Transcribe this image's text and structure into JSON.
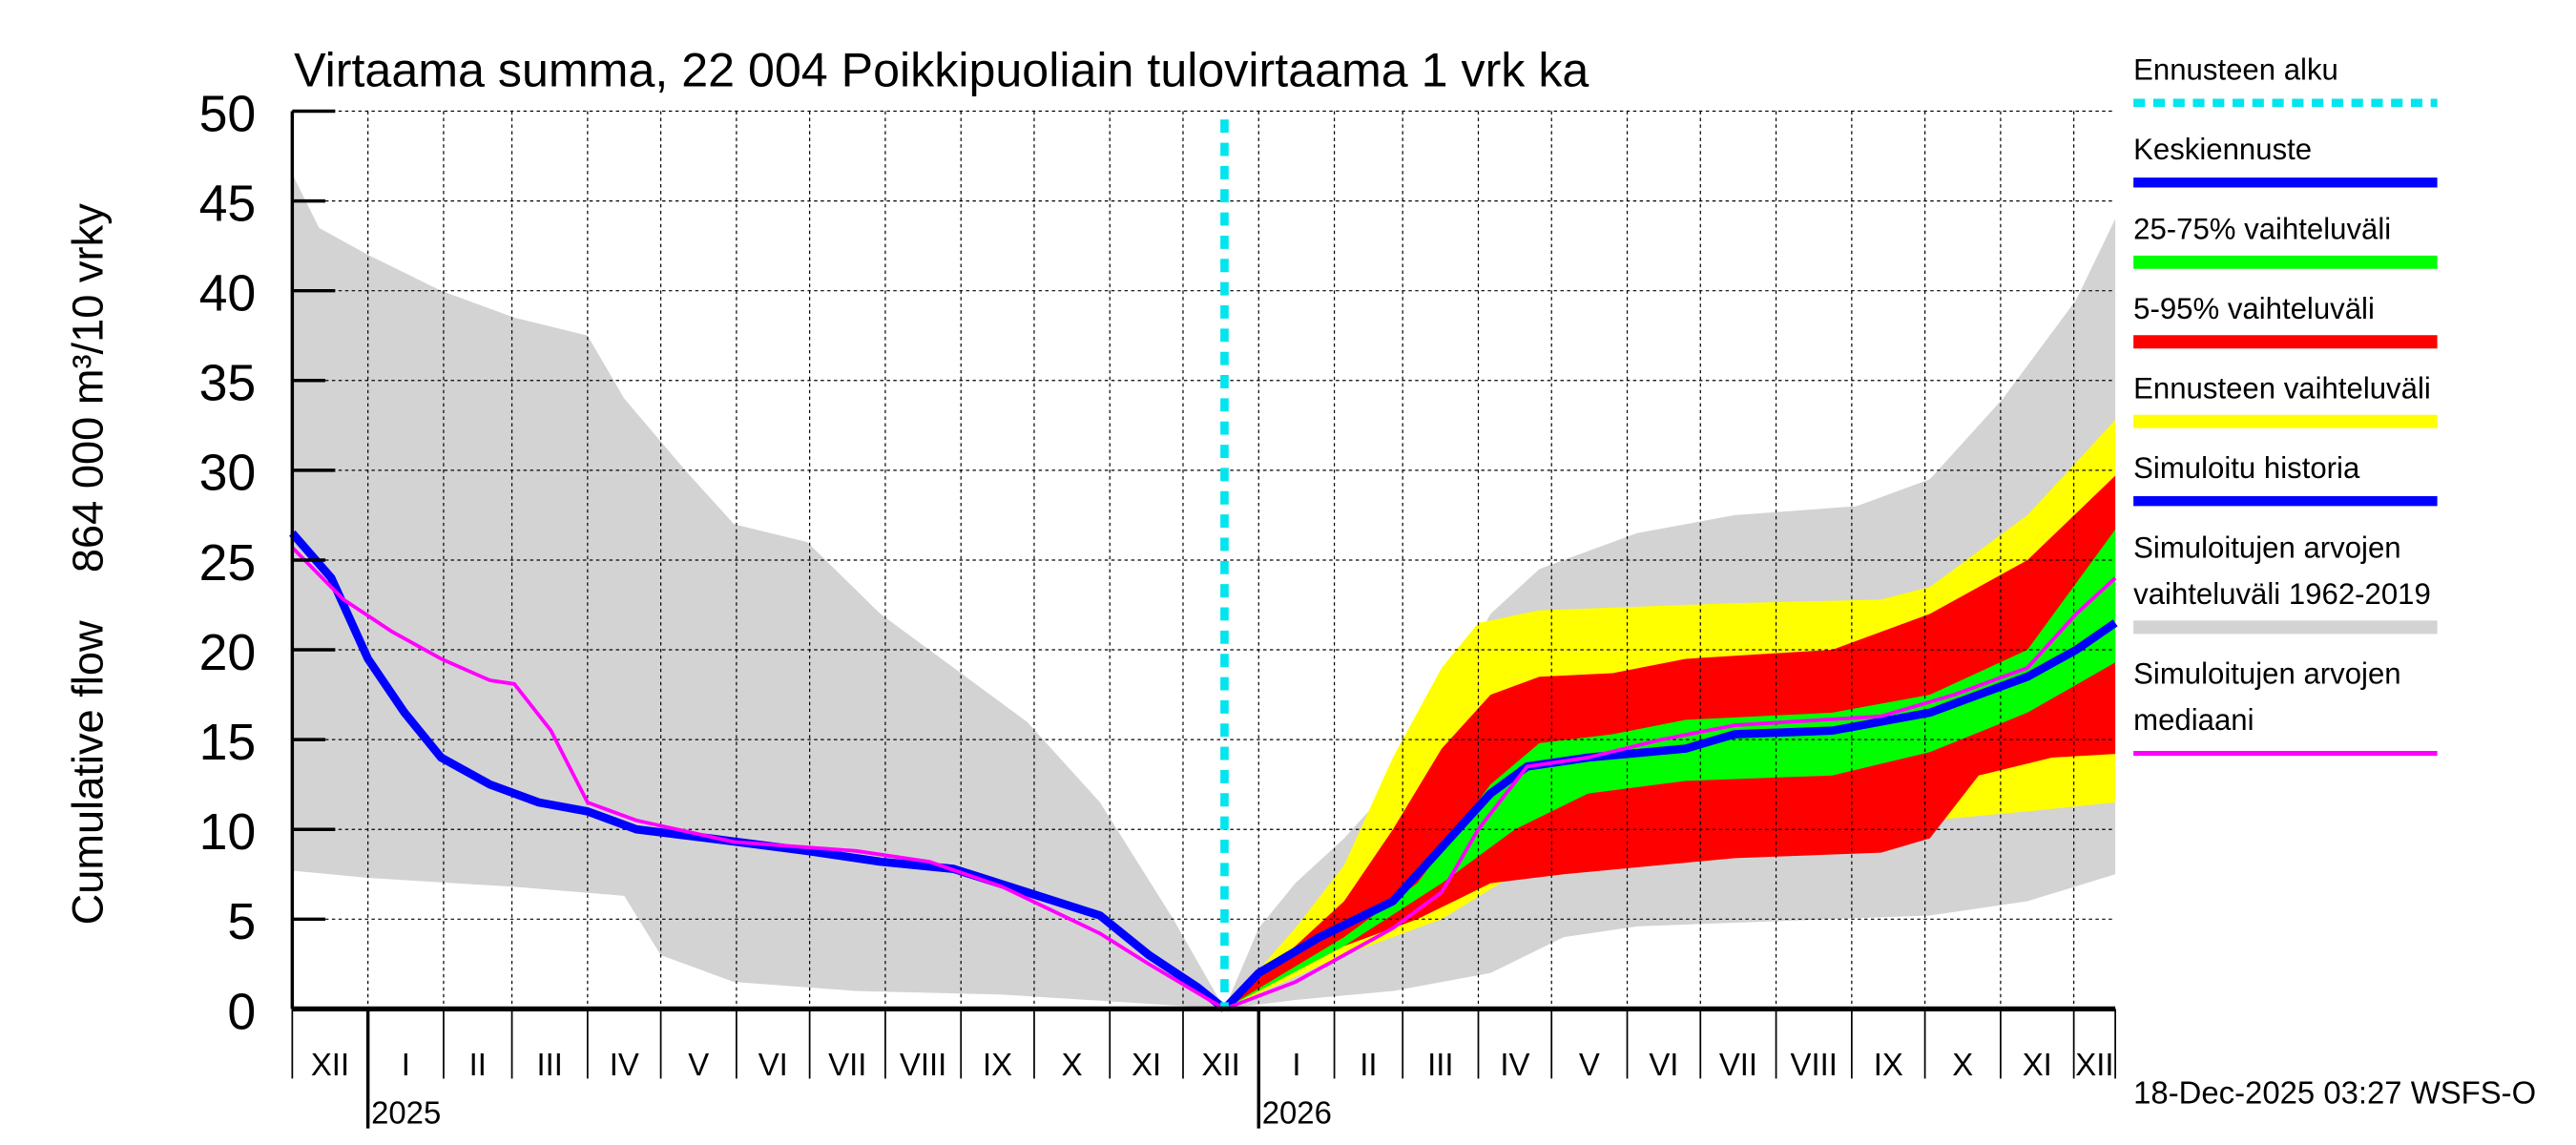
{
  "chart_data": {
    "type": "area",
    "title": "Virtaama summa, 22 004 Poikkipuoliain tulovirtaama 1 vrk ka",
    "ylabel": "Cumulative flow    864 000 m³/10 vrky",
    "ylim": [
      0,
      50
    ],
    "yticks": [
      0,
      5,
      10,
      15,
      20,
      25,
      30,
      35,
      40,
      45,
      50
    ],
    "x_unit": "days since 2025-01-01",
    "xlim": [
      -31,
      716
    ],
    "forecast_start_day": 351,
    "month_boundaries": [
      -31,
      0,
      31,
      59,
      90,
      120,
      151,
      181,
      212,
      243,
      273,
      304,
      334,
      365,
      396,
      424,
      455,
      485,
      516,
      546,
      577,
      608,
      638,
      669,
      699,
      716
    ],
    "month_labels": [
      "XII",
      "I",
      "II",
      "III",
      "IV",
      "V",
      "VI",
      "VII",
      "VIII",
      "IX",
      "X",
      "XI",
      "XII",
      "I",
      "II",
      "III",
      "IV",
      "V",
      "VI",
      "VII",
      "VIII",
      "IX",
      "X",
      "XI",
      "XII"
    ],
    "year_labels": [
      {
        "day": 0,
        "label": "2025"
      },
      {
        "day": 365,
        "label": "2026"
      }
    ],
    "bands": [
      {
        "name": "Simuloitujen arvojen vaihteluväli 1962-2019",
        "color": "#d3d3d3",
        "upper": [
          [
            -31,
            46.5
          ],
          [
            -20,
            43.5
          ],
          [
            0,
            42
          ],
          [
            30,
            40
          ],
          [
            60,
            38.5
          ],
          [
            90,
            37.5
          ],
          [
            105,
            34
          ],
          [
            130,
            30
          ],
          [
            150,
            27
          ],
          [
            180,
            26
          ],
          [
            210,
            22
          ],
          [
            240,
            19
          ],
          [
            270,
            16
          ],
          [
            300,
            11.5
          ],
          [
            330,
            5
          ],
          [
            351,
            0
          ],
          [
            365,
            4.5
          ],
          [
            380,
            7
          ],
          [
            400,
            9.5
          ],
          [
            420,
            12.5
          ],
          [
            440,
            17
          ],
          [
            460,
            22
          ],
          [
            480,
            24.5
          ],
          [
            520,
            26.5
          ],
          [
            560,
            27.5
          ],
          [
            610,
            28
          ],
          [
            640,
            29.5
          ],
          [
            670,
            34
          ],
          [
            700,
            39.5
          ],
          [
            716,
            44
          ]
        ],
        "lower": [
          [
            -31,
            7.7
          ],
          [
            0,
            7.3
          ],
          [
            60,
            6.8
          ],
          [
            105,
            6.3
          ],
          [
            120,
            3
          ],
          [
            150,
            1.5
          ],
          [
            200,
            1
          ],
          [
            260,
            0.8
          ],
          [
            330,
            0.2
          ],
          [
            351,
            0
          ],
          [
            380,
            0.5
          ],
          [
            420,
            1
          ],
          [
            460,
            2
          ],
          [
            490,
            4
          ],
          [
            520,
            4.6
          ],
          [
            600,
            5
          ],
          [
            640,
            5.2
          ],
          [
            680,
            6
          ],
          [
            716,
            7.5
          ]
        ]
      },
      {
        "name": "Ennusteen vaihteluväli",
        "color": "#ffff00",
        "upper": [
          [
            351,
            0
          ],
          [
            380,
            4.5
          ],
          [
            400,
            8
          ],
          [
            420,
            14
          ],
          [
            440,
            19
          ],
          [
            455,
            21.5
          ],
          [
            480,
            22.2
          ],
          [
            560,
            22.6
          ],
          [
            620,
            22.8
          ],
          [
            640,
            23.5
          ],
          [
            680,
            27.5
          ],
          [
            716,
            32.8
          ]
        ],
        "lower": [
          [
            351,
            0
          ],
          [
            400,
            3
          ],
          [
            440,
            5
          ],
          [
            470,
            7.5
          ],
          [
            490,
            8.5
          ],
          [
            560,
            9
          ],
          [
            620,
            9.3
          ],
          [
            640,
            10.5
          ],
          [
            680,
            11
          ],
          [
            716,
            11.5
          ]
        ]
      },
      {
        "name": "5-95% vaihteluväli",
        "color": "#ff0000",
        "upper": [
          [
            351,
            0
          ],
          [
            380,
            3.5
          ],
          [
            400,
            6
          ],
          [
            420,
            10
          ],
          [
            440,
            14.5
          ],
          [
            460,
            17.5
          ],
          [
            480,
            18.5
          ],
          [
            510,
            18.7
          ],
          [
            540,
            19.5
          ],
          [
            600,
            20
          ],
          [
            640,
            22
          ],
          [
            680,
            25
          ],
          [
            716,
            29.7
          ]
        ],
        "lower": [
          [
            351,
            0
          ],
          [
            390,
            3
          ],
          [
            430,
            5
          ],
          [
            460,
            7
          ],
          [
            490,
            7.5
          ],
          [
            560,
            8.4
          ],
          [
            620,
            8.7
          ],
          [
            640,
            9.5
          ],
          [
            660,
            13
          ],
          [
            690,
            14
          ],
          [
            716,
            14.2
          ]
        ]
      },
      {
        "name": "25-75% vaihteluväli",
        "color": "#00ff00",
        "upper": [
          [
            351,
            0
          ],
          [
            400,
            4
          ],
          [
            430,
            7
          ],
          [
            460,
            12.5
          ],
          [
            480,
            14.8
          ],
          [
            510,
            15.3
          ],
          [
            540,
            16.1
          ],
          [
            600,
            16.5
          ],
          [
            640,
            17.5
          ],
          [
            680,
            20
          ],
          [
            716,
            26.7
          ]
        ],
        "lower": [
          [
            351,
            0
          ],
          [
            400,
            3.5
          ],
          [
            440,
            7
          ],
          [
            470,
            10
          ],
          [
            500,
            12
          ],
          [
            540,
            12.7
          ],
          [
            600,
            13
          ],
          [
            640,
            14.3
          ],
          [
            680,
            16.5
          ],
          [
            716,
            19.3
          ]
        ]
      }
    ],
    "series": [
      {
        "name": "Simuloitu historia",
        "color": "#0000ff",
        "width": 5,
        "points": [
          [
            -31,
            26.5
          ],
          [
            -15,
            24
          ],
          [
            0,
            19.5
          ],
          [
            15,
            16.5
          ],
          [
            30,
            14
          ],
          [
            50,
            12.5
          ],
          [
            70,
            11.5
          ],
          [
            90,
            11
          ],
          [
            110,
            10
          ],
          [
            140,
            9.5
          ],
          [
            180,
            8.8
          ],
          [
            210,
            8.2
          ],
          [
            240,
            7.8
          ],
          [
            270,
            6.5
          ],
          [
            300,
            5.2
          ],
          [
            320,
            3
          ],
          [
            340,
            1.2
          ],
          [
            351,
            0
          ]
        ]
      },
      {
        "name": "Keskiennuste",
        "color": "#0000ff",
        "width": 5,
        "points": [
          [
            351,
            0
          ],
          [
            365,
            2
          ],
          [
            390,
            4
          ],
          [
            420,
            6
          ],
          [
            440,
            9
          ],
          [
            460,
            12
          ],
          [
            475,
            13.5
          ],
          [
            500,
            14
          ],
          [
            540,
            14.5
          ],
          [
            560,
            15.3
          ],
          [
            600,
            15.5
          ],
          [
            640,
            16.5
          ],
          [
            660,
            17.5
          ],
          [
            680,
            18.5
          ],
          [
            700,
            20
          ],
          [
            716,
            21.5
          ]
        ]
      },
      {
        "name": "Simuloitujen arvojen mediaani",
        "color": "#ff00ff",
        "width": 2.2,
        "points": [
          [
            -31,
            25.7
          ],
          [
            -10,
            22.8
          ],
          [
            10,
            21
          ],
          [
            30,
            19.5
          ],
          [
            50,
            18.3
          ],
          [
            60,
            18.1
          ],
          [
            75,
            15.5
          ],
          [
            90,
            11.5
          ],
          [
            110,
            10.5
          ],
          [
            150,
            9.3
          ],
          [
            200,
            8.8
          ],
          [
            230,
            8.2
          ],
          [
            260,
            6.8
          ],
          [
            280,
            5.5
          ],
          [
            300,
            4.2
          ],
          [
            320,
            2.5
          ],
          [
            351,
            0
          ],
          [
            380,
            1.5
          ],
          [
            400,
            3
          ],
          [
            420,
            4.5
          ],
          [
            440,
            6.5
          ],
          [
            455,
            10
          ],
          [
            475,
            13.5
          ],
          [
            500,
            14
          ],
          [
            530,
            15
          ],
          [
            560,
            15.8
          ],
          [
            620,
            16.3
          ],
          [
            650,
            17.5
          ],
          [
            680,
            19
          ],
          [
            700,
            22
          ],
          [
            716,
            24
          ]
        ]
      }
    ],
    "legend": [
      {
        "label": "Ennusteen alku",
        "color": "#00e5ee",
        "style": "dashed"
      },
      {
        "label": "Keskiennuste",
        "color": "#0000ff",
        "style": "line"
      },
      {
        "label": "25-75% vaihteluväli",
        "color": "#00ff00",
        "style": "bar"
      },
      {
        "label": "5-95% vaihteluväli",
        "color": "#ff0000",
        "style": "bar"
      },
      {
        "label": "Ennusteen vaihteluväli",
        "color": "#ffff00",
        "style": "bar"
      },
      {
        "label": "Simuloitu historia",
        "color": "#0000ff",
        "style": "line"
      },
      {
        "label": "Simuloitujen arvojen vaihteluväli 1962-2019",
        "label_lines": [
          "Simuloitujen arvojen",
          "vaihteluväli 1962-2019"
        ],
        "color": "#d3d3d3",
        "style": "bar"
      },
      {
        "label": "Simuloitujen arvojen mediaani",
        "label_lines": [
          "Simuloitujen arvojen",
          "mediaani"
        ],
        "color": "#ff00ff",
        "style": "thin"
      }
    ],
    "legend_position": "right",
    "footer": "18-Dec-2025 03:27 WSFS-O"
  }
}
